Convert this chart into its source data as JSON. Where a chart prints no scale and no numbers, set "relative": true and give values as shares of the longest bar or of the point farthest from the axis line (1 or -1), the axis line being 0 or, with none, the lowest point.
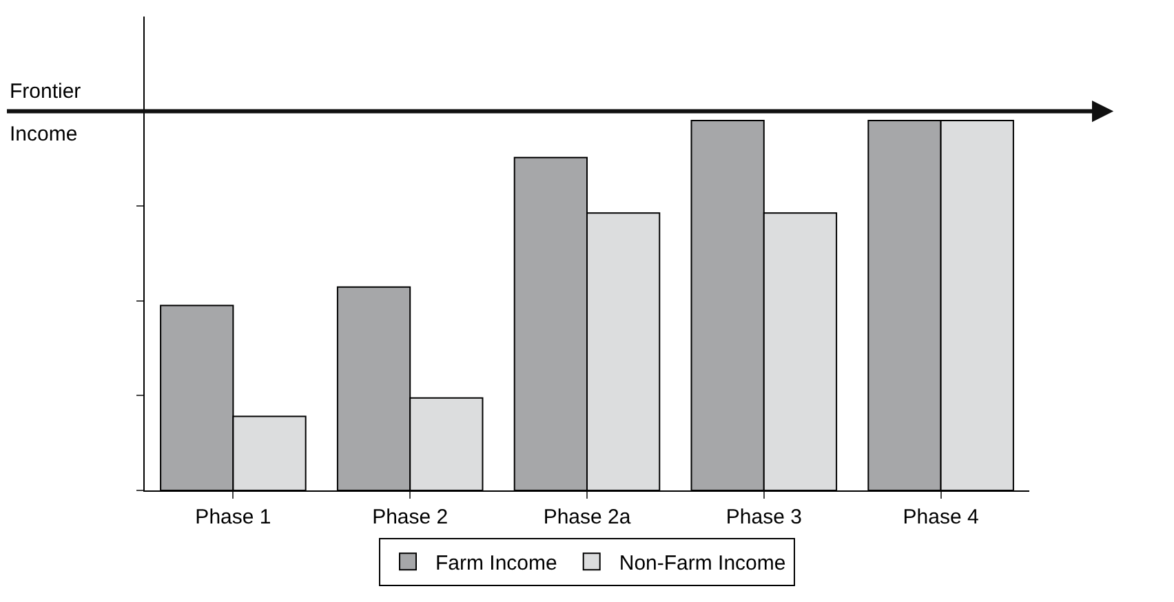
{
  "chart_data": {
    "type": "bar",
    "relative": true,
    "categories": [
      "Phase 1",
      "Phase 2",
      "Phase 2a",
      "Phase 3",
      "Phase 4"
    ],
    "series": [
      {
        "name": "Farm Income",
        "color": "#a6a7a9",
        "values": [
          0.5,
          0.55,
          0.9,
          1,
          1
        ]
      },
      {
        "name": "Non-Farm Income",
        "color": "#dcddde",
        "values": [
          0.2,
          0.25,
          0.75,
          0.75,
          1
        ]
      }
    ],
    "ref_lines": [
      {
        "axis": "y",
        "value": 1.025,
        "label": "Frontier\nIncome",
        "color": "#111111"
      }
    ],
    "legend": "bottom"
  }
}
